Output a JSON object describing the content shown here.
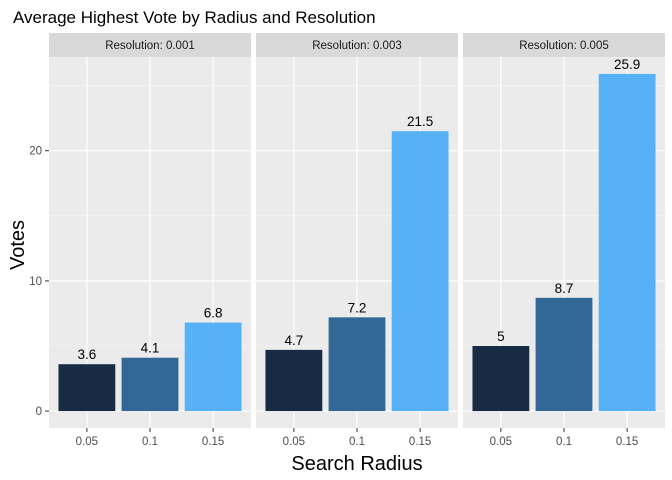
{
  "chart_data": {
    "type": "bar",
    "title": "Average Highest Vote by Radius and Resolution",
    "xlabel": "Search Radius",
    "ylabel": "Votes",
    "categories": [
      "0.05",
      "0.1",
      "0.15"
    ],
    "colors": [
      "#172b45",
      "#326895",
      "#56b1f7"
    ],
    "y_ticks": [
      0,
      10,
      20
    ],
    "ylim": [
      -1.3,
      27.2
    ],
    "grid": true,
    "panels": [
      {
        "strip": "Resolution: 0.001",
        "values": [
          3.6,
          4.1,
          6.8
        ],
        "labels": [
          "3.6",
          "4.1",
          "6.8"
        ]
      },
      {
        "strip": "Resolution: 0.003",
        "values": [
          4.7,
          7.2,
          21.5
        ],
        "labels": [
          "4.7",
          "7.2",
          "21.5"
        ]
      },
      {
        "strip": "Resolution: 0.005",
        "values": [
          5.0,
          8.7,
          25.9
        ],
        "labels": [
          "5",
          "8.7",
          "25.9"
        ]
      }
    ]
  }
}
